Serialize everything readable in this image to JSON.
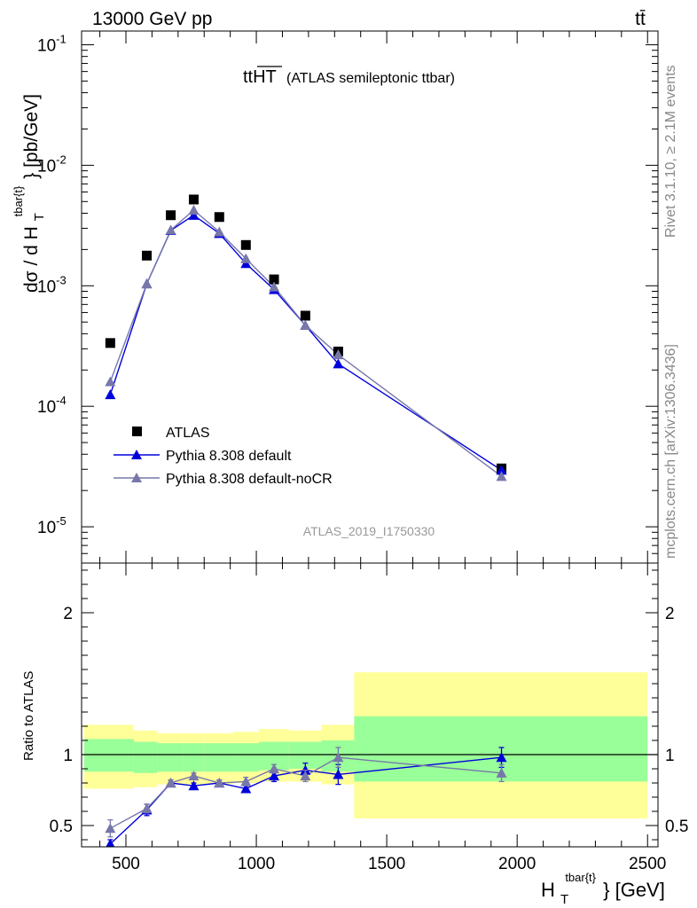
{
  "header": {
    "beam_label": "13000 GeV pp",
    "process_label": "tt̄"
  },
  "side_labels": {
    "rivet": "Rivet 3.1.10, ≥ 2.1M events",
    "mcplots": "mcplots.cern.ch [arXiv:1306.3436]"
  },
  "chart_data": [
    {
      "type": "scatter",
      "panel": "main",
      "title": "tt̅H̅T̅ (ATLAS semileptonic ttbar)",
      "title_main": "ttHT",
      "title_sub": "(ATLAS semileptonic ttbar)",
      "ylabel": "dσ / d H_T^{tbar{t} } [pb/GeV]",
      "ylabel_main": "dσ / d H",
      "ylabel_sub": "T",
      "ylabel_sup": "tbar{t}",
      "ylabel_tail": "} [pb/GeV]",
      "yscale": "log",
      "ylim": [
        5e-06,
        0.13
      ],
      "xlim": [
        330,
        2540
      ],
      "yticklabels": [
        {
          "mant": "10",
          "exp": "-5",
          "value": 1e-05
        },
        {
          "mant": "10",
          "exp": "-4",
          "value": 0.0001
        },
        {
          "mant": "10",
          "exp": "-3",
          "value": 0.001
        },
        {
          "mant": "10",
          "exp": "-2",
          "value": 0.01
        },
        {
          "mant": "10",
          "exp": "-1",
          "value": 0.1
        }
      ],
      "watermark": "ATLAS_2019_I1750330",
      "legend_position": "lower-left",
      "series": [
        {
          "name": "ATLAS",
          "marker": "square",
          "color": "#000000",
          "x": [
            440,
            580,
            672,
            760,
            858,
            960,
            1068,
            1188,
            1314,
            1940
          ],
          "y": [
            0.000335,
            0.00178,
            0.00385,
            0.0052,
            0.00372,
            0.00218,
            0.00113,
            0.000565,
            0.000285,
            3.05e-05
          ]
        },
        {
          "name": "Pythia 8.308 default",
          "marker": "triangle",
          "color": "#0000dd",
          "x": [
            440,
            580,
            672,
            760,
            858,
            960,
            1068,
            1188,
            1314,
            1940
          ],
          "y": [
            0.000125,
            0.00104,
            0.00288,
            0.00385,
            0.00272,
            0.00153,
            0.00093,
            0.00047,
            0.000225,
            2.95e-05
          ]
        },
        {
          "name": "Pythia 8.308 default-noCR",
          "marker": "triangle",
          "color": "#7777aa",
          "x": [
            440,
            580,
            672,
            760,
            858,
            960,
            1068,
            1188,
            1314,
            1940
          ],
          "y": [
            0.00016,
            0.00104,
            0.0029,
            0.00425,
            0.0028,
            0.00168,
            0.00098,
            0.00047,
            0.000268,
            2.62e-05
          ]
        }
      ]
    },
    {
      "type": "scatter",
      "panel": "ratio",
      "ylabel": "Ratio to ATLAS",
      "xlabel": "H_T^{tbar{t} } [GeV]",
      "xlabel_main": "H",
      "xlabel_sub": "T",
      "xlabel_sup": "tbar{t}",
      "xlabel_tail": "} [GeV]",
      "ylim": [
        0.35,
        2.35
      ],
      "xlim": [
        330,
        2540
      ],
      "xticks": [
        500,
        1000,
        1500,
        2000,
        2500
      ],
      "xticklabels": [
        "500",
        "1000",
        "1500",
        "2000",
        "2500"
      ],
      "yticks": [
        0.5,
        1,
        2
      ],
      "yticklabels": [
        "0.5",
        "1",
        "2"
      ],
      "reference_line": 1,
      "bands": [
        {
          "x0": 340,
          "x1": 530,
          "lo_outer": 0.76,
          "hi_outer": 1.21,
          "lo_inner": 0.88,
          "hi_inner": 1.11
        },
        {
          "x0": 530,
          "x1": 620,
          "lo_outer": 0.77,
          "hi_outer": 1.17,
          "lo_inner": 0.87,
          "hi_inner": 1.09
        },
        {
          "x0": 620,
          "x1": 720,
          "lo_outer": 0.79,
          "hi_outer": 1.15,
          "lo_inner": 0.88,
          "hi_inner": 1.08
        },
        {
          "x0": 720,
          "x1": 800,
          "lo_outer": 0.79,
          "hi_outer": 1.15,
          "lo_inner": 0.88,
          "hi_inner": 1.08
        },
        {
          "x0": 800,
          "x1": 910,
          "lo_outer": 0.79,
          "hi_outer": 1.15,
          "lo_inner": 0.88,
          "hi_inner": 1.08
        },
        {
          "x0": 910,
          "x1": 1010,
          "lo_outer": 0.8,
          "hi_outer": 1.16,
          "lo_inner": 0.88,
          "hi_inner": 1.08
        },
        {
          "x0": 1010,
          "x1": 1125,
          "lo_outer": 0.81,
          "hi_outer": 1.18,
          "lo_inner": 0.89,
          "hi_inner": 1.09
        },
        {
          "x0": 1125,
          "x1": 1250,
          "lo_outer": 0.81,
          "hi_outer": 1.17,
          "lo_inner": 0.9,
          "hi_inner": 1.09
        },
        {
          "x0": 1250,
          "x1": 1375,
          "lo_outer": 0.79,
          "hi_outer": 1.21,
          "lo_inner": 0.88,
          "hi_inner": 1.1
        },
        {
          "x0": 1375,
          "x1": 2500,
          "lo_outer": 0.55,
          "hi_outer": 1.58,
          "lo_inner": 0.81,
          "hi_inner": 1.27
        }
      ],
      "band_colors": {
        "outer": "#ffff99",
        "inner": "#99ff99"
      },
      "series": [
        {
          "name": "Pythia 8.308 default",
          "color": "#0000dd",
          "x": [
            440,
            580,
            672,
            760,
            858,
            960,
            1068,
            1188,
            1314,
            1940
          ],
          "y": [
            0.37,
            0.61,
            0.8,
            0.78,
            0.8,
            0.76,
            0.85,
            0.89,
            0.86,
            0.98
          ],
          "err": [
            0.03,
            0.04,
            0.02,
            0.02,
            0.02,
            0.02,
            0.04,
            0.05,
            0.07,
            0.07
          ]
        },
        {
          "name": "Pythia 8.308 default-noCR",
          "color": "#7777aa",
          "x": [
            440,
            580,
            672,
            760,
            858,
            960,
            1068,
            1188,
            1314,
            1940
          ],
          "y": [
            0.48,
            0.62,
            0.8,
            0.85,
            0.8,
            0.81,
            0.9,
            0.85,
            0.98,
            0.87
          ],
          "err": [
            0.06,
            0.03,
            0.02,
            0.02,
            0.02,
            0.03,
            0.03,
            0.04,
            0.07,
            0.06
          ]
        }
      ]
    }
  ]
}
